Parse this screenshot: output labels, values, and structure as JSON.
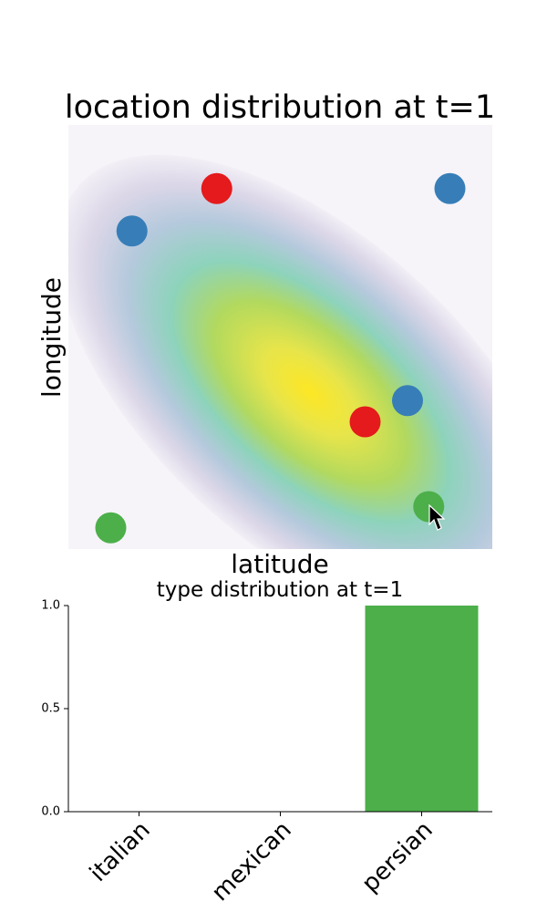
{
  "chart_data": [
    {
      "type": "scatter",
      "title": "location distribution at t=1",
      "xlabel": "latitude",
      "ylabel": "longitude",
      "xlim": [
        0,
        1
      ],
      "ylim": [
        0,
        1
      ],
      "axes_visible": false,
      "background": {
        "kind": "gaussian-density",
        "colormap": "viridis-fading-to-white",
        "mean": [
          0.57,
          0.37
        ],
        "orientation": "elongated along the descending diagonal"
      },
      "points": [
        {
          "x": 0.15,
          "y": 0.75,
          "color": "#377eb8"
        },
        {
          "x": 0.35,
          "y": 0.85,
          "color": "#e41a1c"
        },
        {
          "x": 0.9,
          "y": 0.85,
          "color": "#377eb8"
        },
        {
          "x": 0.8,
          "y": 0.35,
          "color": "#377eb8"
        },
        {
          "x": 0.7,
          "y": 0.3,
          "color": "#e41a1c"
        },
        {
          "x": 0.85,
          "y": 0.1,
          "color": "#4daf4a"
        },
        {
          "x": 0.1,
          "y": 0.05,
          "color": "#4daf4a"
        }
      ]
    },
    {
      "type": "bar",
      "title": "type distribution at t=1",
      "categories": [
        "italian",
        "mexican",
        "persian"
      ],
      "values": [
        0,
        0,
        1.0
      ],
      "colors": [
        "#4daf4a",
        "#4daf4a",
        "#4daf4a"
      ],
      "ylim": [
        0,
        1.0
      ],
      "yticks": [
        "0.0",
        "0.5",
        "1.0"
      ],
      "spines": "left and bottom only",
      "xtick_rotation_deg": 45
    }
  ],
  "cursor": {
    "icon": "arrow-pointer",
    "color": "#000000"
  }
}
